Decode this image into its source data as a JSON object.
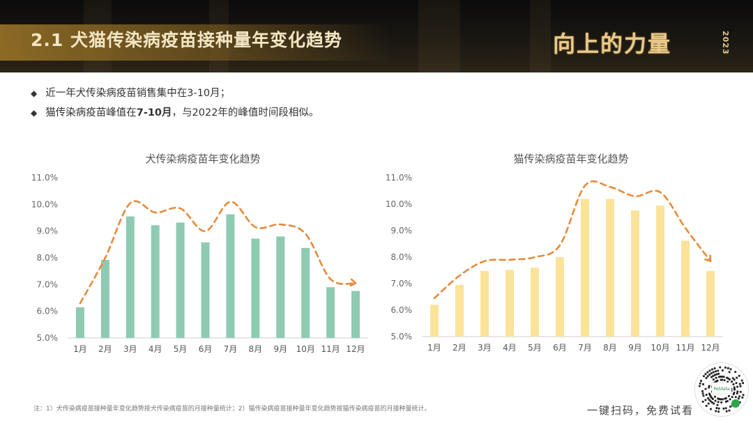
{
  "header": {
    "title": "2.1 犬猫传染病疫苗接种量年变化趋势",
    "logo_text": "向上的力量",
    "logo_year": "2023"
  },
  "bullets": [
    {
      "text": "近一年犬传染病疫苗销售集中在3-10月；"
    },
    {
      "prefix": "猫传染病疫苗峰值在",
      "bold": "7-10月",
      "suffix": "，与2022年的峰值时间段相似。"
    }
  ],
  "chart_data": [
    {
      "type": "bar",
      "title": "犬传染病疫苗年变化趋势",
      "categories": [
        "1月",
        "2月",
        "3月",
        "4月",
        "5月",
        "6月",
        "7月",
        "8月",
        "9月",
        "10月",
        "11月",
        "12月"
      ],
      "values": [
        6.15,
        7.92,
        9.55,
        9.22,
        9.32,
        8.58,
        9.63,
        8.72,
        8.8,
        8.37,
        6.9,
        6.76
      ],
      "trend": [
        6.3,
        8.0,
        10.05,
        9.7,
        9.85,
        9.0,
        10.1,
        9.15,
        9.25,
        8.9,
        7.2,
        7.05
      ],
      "yticks": [
        "5.0%",
        "6.0%",
        "7.0%",
        "8.0%",
        "9.0%",
        "10.0%",
        "11.0%"
      ],
      "ylim": [
        5,
        11
      ],
      "bar_color": "#8fcab3",
      "trend_color": "#e58a3a"
    },
    {
      "type": "bar",
      "title": "猫传染病疫苗年变化趋势",
      "categories": [
        "1月",
        "2月",
        "3月",
        "4月",
        "5月",
        "6月",
        "7月",
        "8月",
        "9月",
        "10月",
        "11月",
        "12月"
      ],
      "values": [
        6.2,
        6.95,
        7.48,
        7.52,
        7.6,
        8.0,
        10.2,
        10.2,
        9.76,
        9.95,
        8.62,
        7.48
      ],
      "trend": [
        6.45,
        7.3,
        7.85,
        7.9,
        8.0,
        8.45,
        10.7,
        10.65,
        10.3,
        10.45,
        9.1,
        7.85
      ],
      "yticks": [
        "5.0%",
        "6.0%",
        "7.0%",
        "8.0%",
        "9.0%",
        "10.0%",
        "11.0%"
      ],
      "ylim": [
        5,
        11
      ],
      "bar_color": "#fbe39a",
      "trend_color": "#e58a3a"
    }
  ],
  "footnote": "注：1）犬传染病疫苗接种量年变化趋势按犬传染病疫苗的月接种量统计；2）猫传染病疫苗接种量年变化趋势按猫传染病疫苗的月接种量统计。",
  "scan_text": "一键扫码，免费试看",
  "qr_label": "Petdata"
}
